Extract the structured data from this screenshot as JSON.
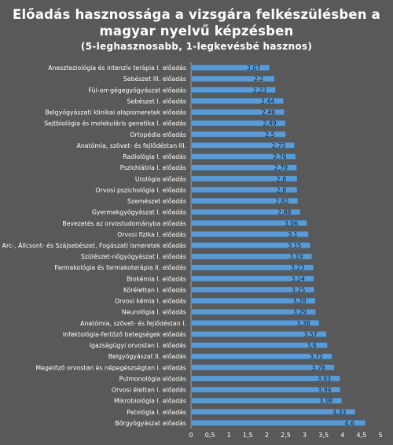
{
  "chart_data": {
    "type": "bar",
    "orientation": "horizontal",
    "title_lines": [
      "Előadás hasznossága a vizsgára felkészülésben a",
      "magyar nyelvű képzésben",
      "(5-leghasznosabb, 1-legkevésbé hasznos)"
    ],
    "categories": [
      "Aneszteziológia és intenzív terápia I. előadás",
      "Sebészet III. előadás",
      "Fül-orr-gégegyógyászat előadás",
      "Sebészet I. előadás",
      "Belgyógyászati klinikai alapismeretek előadás",
      "Sejtbiológia és molekuláris genetika I. előadás",
      "Ortopédia előadás",
      "Anatómia, szövet- és fejlődéstan III.",
      "Radiológia I. előadás",
      "Pszichiátria I. előadás",
      "Urológia előadás",
      "Orvosi pszichológia I. előadás",
      "Szemészet előadás",
      "Gyermekgyógyászat I. előadás",
      "Bevezetés az orvostudományba előadás",
      "Orvosi fizika I. előadás",
      "Arc-, Állcsont- és Szájsebészet, Fogászati ismeretek előadás",
      "Szülészet-nőgyógyászat I. előadás",
      "Farmakológia és farmakoterápia II. előadás",
      "Biokémia I. előadás",
      "Kórélettan I. előadás",
      "Orvosi kémia I. előadás",
      "Neurológia I. előadás",
      "Anatómia, szövet- és fejlődéstan I.",
      "Infektológia-fertőző betegségek előadás",
      "Igazságügyi orvostan I. előadás",
      "Belgyógyászat II. előadás",
      "Megelőző orvostan és népegészségtan I. előadás",
      "Pulmonológia előadás",
      "Orvosi élettan I. előadás",
      "Mikrobiológia I. előadás",
      "Patológia I. előadás",
      "Bőrgyógyászat előadás"
    ],
    "values": [
      2.07,
      2.2,
      2.23,
      2.44,
      2.46,
      2.49,
      2.5,
      2.73,
      2.76,
      2.79,
      2.8,
      2.8,
      2.82,
      2.88,
      3.06,
      3.1,
      3.15,
      3.19,
      3.23,
      3.24,
      3.25,
      3.28,
      3.29,
      3.38,
      3.57,
      3.6,
      3.72,
      3.78,
      3.93,
      3.94,
      3.98,
      4.33,
      4.6
    ],
    "value_labels": [
      "2,07",
      "2,2",
      "2,23",
      "2,44",
      "2,46",
      "2,49",
      "2,5",
      "2,73",
      "2,76",
      "2,79",
      "2,8",
      "2,8",
      "2,82",
      "2,88",
      "3,06",
      "3,1",
      "3,15",
      "3,19",
      "3,23",
      "3,24",
      "3,25",
      "3,28",
      "3,29",
      "3,38",
      "3,57",
      "3,6",
      "3,72",
      "3,78",
      "3,93",
      "3,94",
      "3,98",
      "4,33",
      "4,6"
    ],
    "xlim": [
      0,
      5
    ],
    "x_ticks": [
      "0",
      "0,5",
      "1",
      "1,5",
      "2",
      "2,5",
      "3",
      "3,5",
      "4",
      "4,5",
      "5"
    ],
    "grid": false,
    "legend": "none",
    "bar_color": "#5b9bd5",
    "background_color": "#595959",
    "text_color": "#ffffff"
  }
}
